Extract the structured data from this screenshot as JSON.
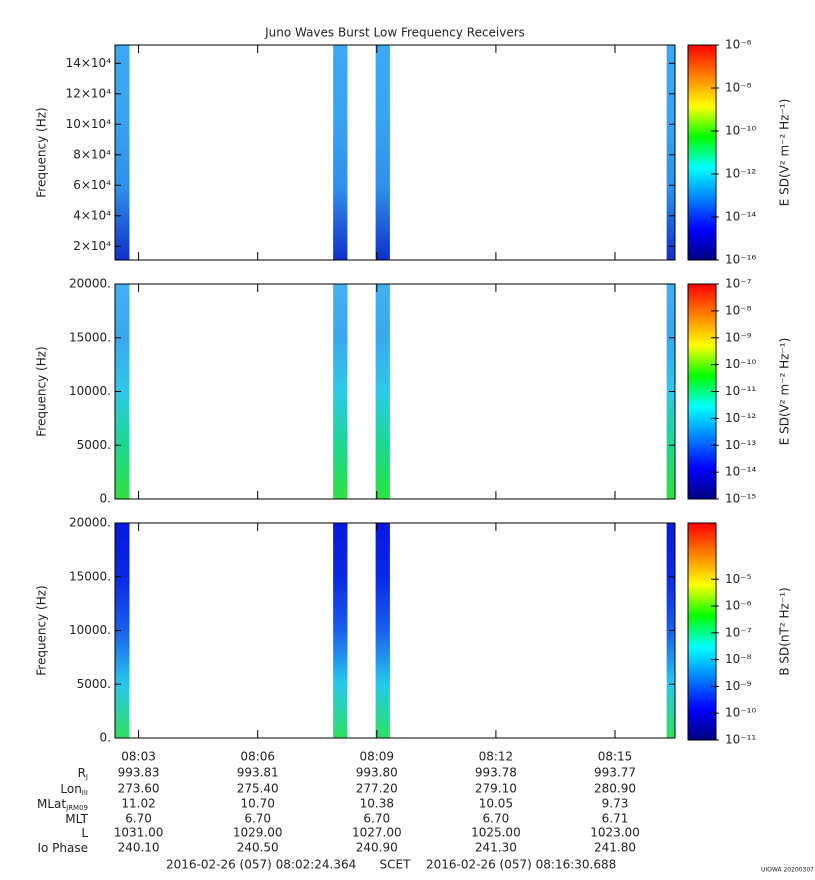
{
  "chart_data": [
    {
      "type": "spectrogram",
      "title": "Juno Waves Burst Low Frequency Receivers",
      "ylabel": "Frequency (Hz)",
      "xlim": [
        2.406,
        16.511
      ],
      "ylim": [
        11000,
        152000
      ],
      "yticks": [
        {
          "value": 20000,
          "label": "2×10⁴"
        },
        {
          "value": 40000,
          "label": "4×10⁴"
        },
        {
          "value": 60000,
          "label": "6×10⁴"
        },
        {
          "value": 80000,
          "label": "8×10⁴"
        },
        {
          "value": 100000,
          "label": "10×10⁴"
        },
        {
          "value": 120000,
          "label": "12×10⁴"
        },
        {
          "value": 140000,
          "label": "14×10⁴"
        }
      ],
      "bursts": [
        [
          2.406,
          2.77
        ],
        [
          7.9,
          8.26
        ],
        [
          8.97,
          9.33
        ],
        [
          16.3,
          16.511
        ]
      ],
      "gradient": [
        "#3ea8f2",
        "#3aa4f0",
        "#2f90ea",
        "#1030c8"
      ],
      "zlabel": "E SD(V² m⁻² Hz⁻¹)",
      "zscale": "log",
      "zlim": [
        1e-16,
        1e-06
      ],
      "zticks": [
        {
          "value": 1e-06,
          "label": "10⁻⁶"
        },
        {
          "value": 1e-08,
          "label": "10⁻⁸"
        },
        {
          "value": 1e-10,
          "label": "10⁻¹⁰"
        },
        {
          "value": 1e-12,
          "label": "10⁻¹²"
        },
        {
          "value": 1e-14,
          "label": "10⁻¹⁴"
        },
        {
          "value": 1e-16,
          "label": "10⁻¹⁶"
        }
      ]
    },
    {
      "type": "spectrogram",
      "ylabel": "Frequency (Hz)",
      "xlim": [
        2.406,
        16.511
      ],
      "ylim": [
        0,
        20000
      ],
      "yticks": [
        {
          "value": 0,
          "label": "0."
        },
        {
          "value": 5000,
          "label": "5000."
        },
        {
          "value": 10000,
          "label": "10000."
        },
        {
          "value": 15000,
          "label": "15000."
        },
        {
          "value": 20000,
          "label": "20000."
        }
      ],
      "bursts": [
        [
          2.406,
          2.77
        ],
        [
          7.9,
          8.26
        ],
        [
          8.97,
          9.33
        ],
        [
          16.3,
          16.511
        ]
      ],
      "gradient": [
        "#44b0f2",
        "#3aa8ee",
        "#30c8e8",
        "#1cd890",
        "#30e040"
      ],
      "zlabel": "E SD(V² m⁻² Hz⁻¹)",
      "zscale": "log",
      "zlim": [
        1e-15,
        1e-07
      ],
      "zticks": [
        {
          "value": 1e-07,
          "label": "10⁻⁷"
        },
        {
          "value": 1e-08,
          "label": "10⁻⁸"
        },
        {
          "value": 1e-09,
          "label": "10⁻⁹"
        },
        {
          "value": 1e-10,
          "label": "10⁻¹⁰"
        },
        {
          "value": 1e-11,
          "label": "10⁻¹¹"
        },
        {
          "value": 1e-12,
          "label": "10⁻¹²"
        },
        {
          "value": 1e-13,
          "label": "10⁻¹³"
        },
        {
          "value": 1e-14,
          "label": "10⁻¹⁴"
        },
        {
          "value": 1e-15,
          "label": "10⁻¹⁵"
        }
      ]
    },
    {
      "type": "spectrogram",
      "ylabel": "Frequency (Hz)",
      "xlim": [
        2.406,
        16.511
      ],
      "xticks": [
        {
          "value": 3,
          "label": "08:03"
        },
        {
          "value": 6,
          "label": "08:06"
        },
        {
          "value": 9,
          "label": "08:09"
        },
        {
          "value": 12,
          "label": "08:12"
        },
        {
          "value": 15,
          "label": "08:15"
        }
      ],
      "ylim": [
        0,
        20000
      ],
      "yticks": [
        {
          "value": 0,
          "label": "0."
        },
        {
          "value": 5000,
          "label": "5000."
        },
        {
          "value": 10000,
          "label": "10000."
        },
        {
          "value": 15000,
          "label": "15000."
        },
        {
          "value": 20000,
          "label": "20000."
        }
      ],
      "bursts": [
        [
          2.406,
          2.77
        ],
        [
          7.9,
          8.26
        ],
        [
          8.97,
          9.33
        ],
        [
          16.3,
          16.511
        ]
      ],
      "gradient": [
        "#0818e0",
        "#0a28e4",
        "#1a60ec",
        "#28c8ec",
        "#30e060"
      ],
      "zlabel": "B SD(nT² Hz⁻¹)",
      "zscale": "log",
      "zlim": [
        1e-11,
        0.00126
      ],
      "zticks": [
        {
          "value": 1e-05,
          "label": "10⁻⁵"
        },
        {
          "value": 1e-06,
          "label": "10⁻⁶"
        },
        {
          "value": 1e-07,
          "label": "10⁻⁷"
        },
        {
          "value": 1e-08,
          "label": "10⁻⁸"
        },
        {
          "value": 1e-09,
          "label": "10⁻⁹"
        },
        {
          "value": 1e-10,
          "label": "10⁻¹⁰"
        },
        {
          "value": 1e-11,
          "label": "10⁻¹¹"
        }
      ]
    }
  ],
  "colormap": [
    "#ff0000",
    "#ff8000",
    "#ffff00",
    "#00ff00",
    "#00ffff",
    "#0080ff",
    "#0000ff",
    "#000080"
  ],
  "ephemeris": [
    {
      "label": "R",
      "sub": "J",
      "values": [
        "993.83",
        "993.81",
        "993.80",
        "993.78",
        "993.77"
      ]
    },
    {
      "label": "Lon",
      "sub": "III",
      "values": [
        "273.60",
        "275.40",
        "277.20",
        "279.10",
        "280.90"
      ]
    },
    {
      "label": "MLat",
      "sub": "JRM09",
      "values": [
        "11.02",
        "10.70",
        "10.38",
        "10.05",
        "9.73"
      ]
    },
    {
      "label": "MLT",
      "values": [
        "6.70",
        "6.70",
        "6.70",
        "6.70",
        "6.71"
      ]
    },
    {
      "label": "L",
      "values": [
        "1031.00",
        "1029.00",
        "1027.00",
        "1025.00",
        "1023.00"
      ]
    },
    {
      "label": "Io Phase",
      "values": [
        "240.10",
        "240.50",
        "240.90",
        "241.30",
        "241.80"
      ]
    }
  ],
  "scet": {
    "start": "2016-02-26 (057) 08:02:24.364",
    "label": "SCET",
    "end": "2016-02-26 (057) 08:16:30.688"
  },
  "footer": "UIOWA 20200307"
}
